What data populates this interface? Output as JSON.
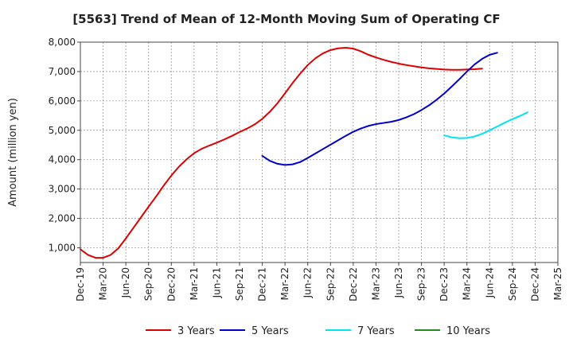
{
  "chart_data": {
    "type": "line",
    "title": "[5563]  Trend of Mean of 12-Month Moving Sum of Operating CF",
    "xlabel": "",
    "ylabel": "Amount (million yen)",
    "ylim": [
      500,
      8000
    ],
    "yticks": [
      1000,
      2000,
      3000,
      4000,
      5000,
      6000,
      7000,
      8000
    ],
    "ytick_labels": [
      "1,000",
      "2,000",
      "3,000",
      "4,000",
      "5,000",
      "6,000",
      "7,000",
      "8,000"
    ],
    "xticks": [
      "Dec-19",
      "Mar-20",
      "Jun-20",
      "Sep-20",
      "Dec-20",
      "Mar-21",
      "Jun-21",
      "Sep-21",
      "Dec-21",
      "Mar-22",
      "Jun-22",
      "Sep-22",
      "Dec-22",
      "Mar-23",
      "Jun-23",
      "Sep-23",
      "Dec-23",
      "Mar-24",
      "Jun-24",
      "Sep-24",
      "Dec-24",
      "Mar-25"
    ],
    "grid": true,
    "legend_position": "bottom",
    "series": [
      {
        "name": "3 Years",
        "color": "#dd0000",
        "start_index": 0,
        "values": [
          950,
          760,
          660,
          660,
          760,
          980,
          1320,
          1680,
          2040,
          2400,
          2750,
          3120,
          3460,
          3760,
          4010,
          4220,
          4370,
          4480,
          4580,
          4690,
          4810,
          4940,
          5060,
          5200,
          5390,
          5630,
          5920,
          6260,
          6610,
          6930,
          7220,
          7450,
          7620,
          7730,
          7790,
          7810,
          7780,
          7690,
          7570,
          7480,
          7400,
          7330,
          7270,
          7220,
          7180,
          7140,
          7110,
          7090,
          7070,
          7060,
          7060,
          7070,
          7080,
          7100
        ]
      },
      {
        "name": "5 Years",
        "color": "#0000cc",
        "start_index": 24,
        "values": [
          4130,
          3960,
          3860,
          3820,
          3840,
          3920,
          4060,
          4210,
          4360,
          4510,
          4660,
          4810,
          4950,
          5060,
          5150,
          5210,
          5250,
          5290,
          5350,
          5440,
          5550,
          5690,
          5850,
          6040,
          6250,
          6490,
          6740,
          7000,
          7240,
          7430,
          7570,
          7640
        ]
      },
      {
        "name": "7 Years",
        "color": "#00e5ee",
        "start_index": 48,
        "values": [
          4830,
          4760,
          4730,
          4740,
          4790,
          4880,
          5000,
          5130,
          5260,
          5380,
          5490,
          5610
        ]
      },
      {
        "name": "10 Years",
        "color": "#228b22",
        "start_index": 0,
        "values": []
      }
    ]
  }
}
